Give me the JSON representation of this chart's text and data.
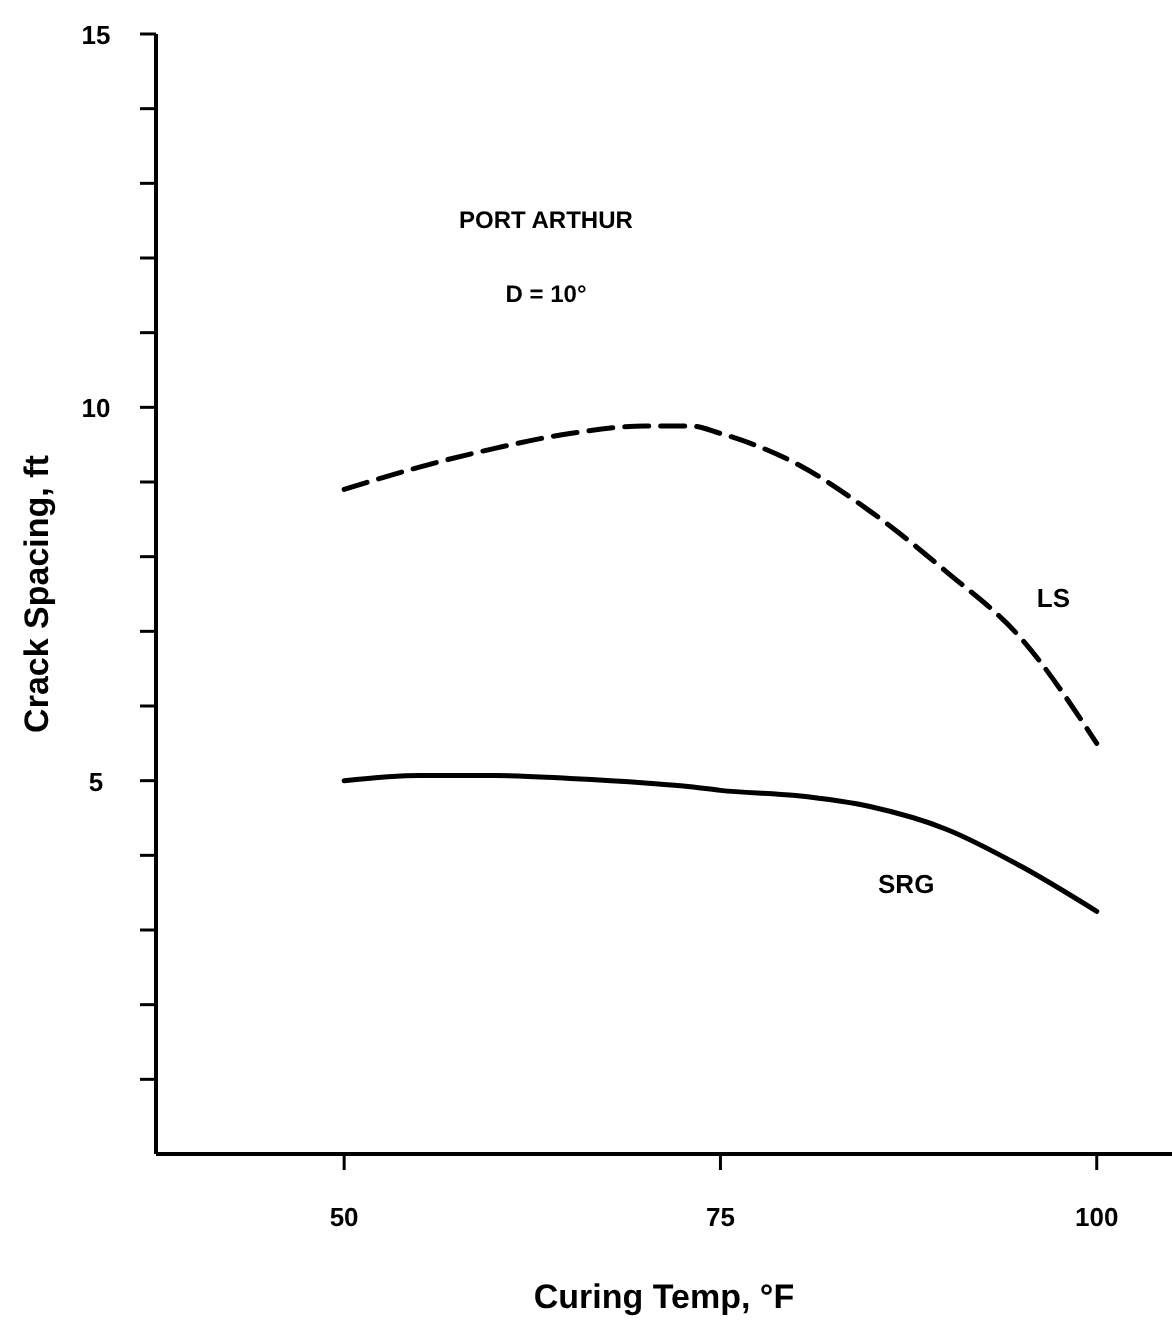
{
  "chart_data": {
    "type": "line",
    "xlabel": "Curing Temp, °F",
    "ylabel": "Crack Spacing, ft",
    "annotations": [
      "PORT ARTHUR",
      "D = 10°"
    ],
    "x": [
      50,
      55,
      60,
      65,
      70,
      73,
      75,
      80,
      85,
      90,
      95,
      100
    ],
    "series": [
      {
        "name": "LS",
        "color": "#000000",
        "line_style": "dashed",
        "values": [
          8.9,
          9.2,
          9.45,
          9.65,
          9.75,
          9.75,
          9.65,
          9.25,
          8.6,
          7.8,
          6.9,
          5.5
        ]
      },
      {
        "name": "SRG",
        "color": "#000000",
        "line_style": "solid",
        "values": [
          5.0,
          5.07,
          5.07,
          5.03,
          4.97,
          4.92,
          4.87,
          4.8,
          4.65,
          4.35,
          3.85,
          3.25
        ]
      }
    ],
    "xlim": [
      37.5,
      105
    ],
    "xticks": [
      50,
      75,
      100
    ],
    "ylim": [
      0,
      15
    ],
    "yticks": [
      {
        "value": 1,
        "label": null
      },
      {
        "value": 2,
        "label": null
      },
      {
        "value": 3,
        "label": null
      },
      {
        "value": 4,
        "label": null
      },
      5,
      {
        "value": 6,
        "label": null
      },
      {
        "value": 7,
        "label": null
      },
      {
        "value": 8,
        "label": null
      },
      {
        "value": 9,
        "label": null
      },
      10,
      {
        "value": 11,
        "label": null
      },
      {
        "value": 12,
        "label": null
      },
      {
        "value": 13,
        "label": null
      },
      {
        "value": 14,
        "label": null
      },
      15
    ],
    "grid": false,
    "legend": false,
    "marker": "none"
  }
}
